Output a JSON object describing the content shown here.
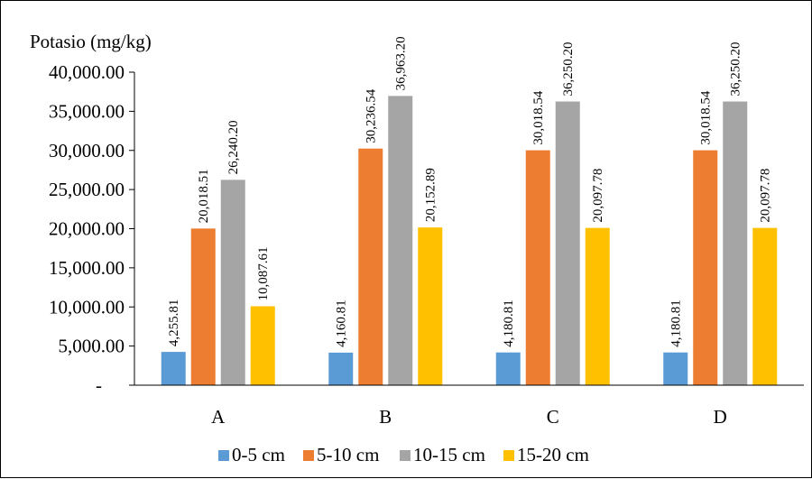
{
  "chart_data": {
    "type": "bar",
    "ylabel": "Potasio (mg/kg)",
    "categories": [
      "A",
      "B",
      "C",
      "D"
    ],
    "ylim": [
      0,
      40000
    ],
    "yticks": [
      0,
      5000,
      10000,
      15000,
      20000,
      25000,
      30000,
      35000,
      40000
    ],
    "ytick_labels": [
      "-",
      "5,000.00",
      "10,000.00",
      "15,000.00",
      "20,000.00",
      "25,000.00",
      "30,000.00",
      "35,000.00",
      "40,000.00"
    ],
    "grid": false,
    "legend_position": "bottom",
    "series": [
      {
        "name": "0-5 cm",
        "color": "#5B9BD5",
        "values": [
          4255.81,
          4160.81,
          4180.81,
          4180.81
        ],
        "labels": [
          "4,255.81",
          "4,160.81",
          "4,180.81",
          "4,180.81"
        ]
      },
      {
        "name": "5-10 cm",
        "color": "#ED7D31",
        "values": [
          20018.51,
          30236.54,
          30018.54,
          30018.54
        ],
        "labels": [
          "20,018.51",
          "30,236.54",
          "30,018.54",
          "30,018.54"
        ]
      },
      {
        "name": "10-15 cm",
        "color": "#A5A5A5",
        "values": [
          26240.2,
          36963.2,
          36250.2,
          36250.2
        ],
        "labels": [
          "26,240.20",
          "36,963.20",
          "36,250.20",
          "36,250.20"
        ]
      },
      {
        "name": "15-20 cm",
        "color": "#FFC000",
        "values": [
          10087.61,
          20152.89,
          20097.78,
          20097.78
        ],
        "labels": [
          "10,087.61",
          "20,152.89",
          "20,097.78",
          "20,097.78"
        ]
      }
    ]
  }
}
